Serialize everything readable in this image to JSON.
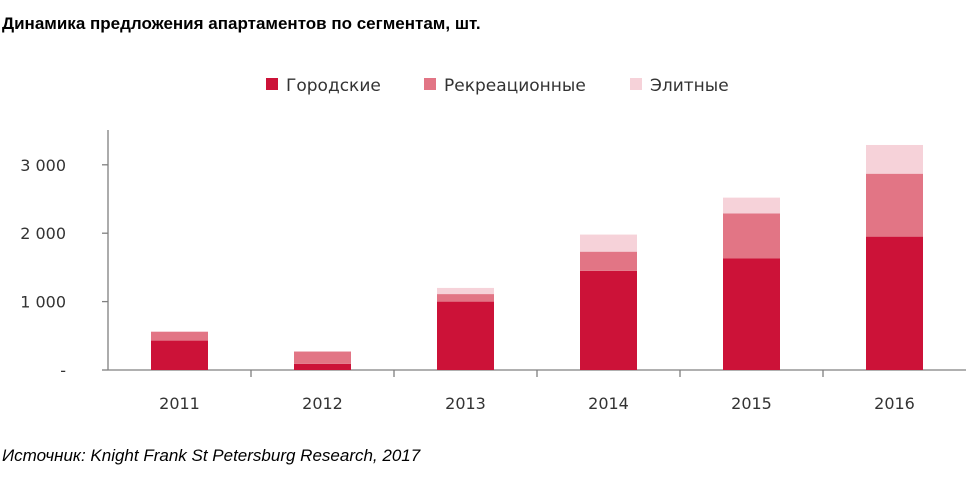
{
  "title": "Динамика предложения апартаментов по сегментам, шт.",
  "source": "Источник: Knight Frank St Petersburg Research, 2017",
  "chart_data": {
    "type": "bar",
    "stacked": true,
    "categories": [
      "2011",
      "2012",
      "2013",
      "2014",
      "2015",
      "2016"
    ],
    "series": [
      {
        "name": "Городские",
        "color": "#cc1238",
        "values": [
          430,
          90,
          1000,
          1450,
          1630,
          1950
        ]
      },
      {
        "name": "Рекреационные",
        "color": "#e27585",
        "values": [
          130,
          180,
          110,
          280,
          660,
          920
        ]
      },
      {
        "name": "Элитные",
        "color": "#f6d2d9",
        "values": [
          0,
          0,
          90,
          250,
          230,
          420
        ]
      }
    ],
    "yticks": [
      {
        "value": 0,
        "label": "-"
      },
      {
        "value": 1000,
        "label": "1 000"
      },
      {
        "value": 2000,
        "label": "2 000"
      },
      {
        "value": 3000,
        "label": "3 000"
      }
    ],
    "ylim": [
      0,
      3500
    ],
    "legend_position": "top-center",
    "grid": false
  }
}
